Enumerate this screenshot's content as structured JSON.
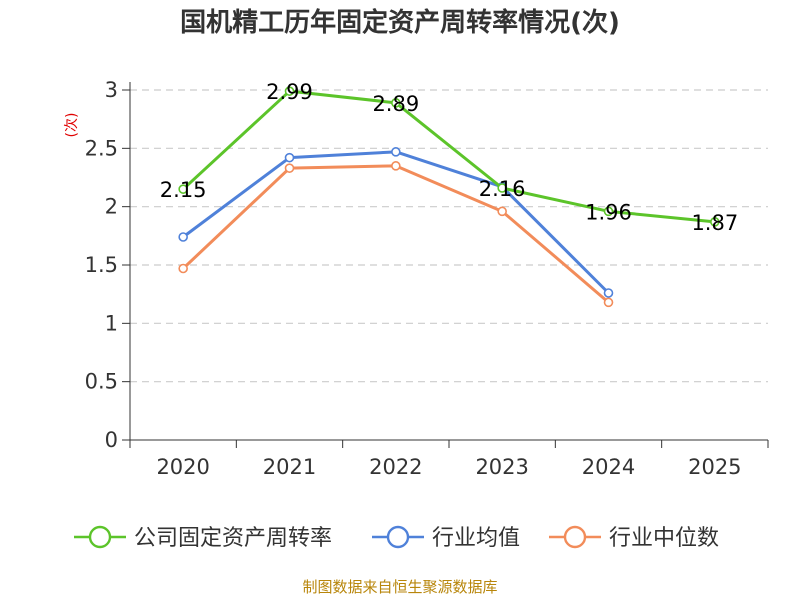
{
  "chart_data": {
    "type": "line",
    "title": "国机精工历年固定资产周转率情况(次)",
    "ylabel": "(次)",
    "xlabel": "",
    "categories": [
      "2020",
      "2021",
      "2022",
      "2023",
      "2024",
      "2025"
    ],
    "ylim": [
      0,
      3
    ],
    "yticks": [
      "0",
      "0.5",
      "1",
      "1.5",
      "2",
      "2.5",
      "3"
    ],
    "ytick_values": [
      0,
      0.5,
      1,
      1.5,
      2,
      2.5,
      3
    ],
    "grid": "horizontal-dashed",
    "legend_position": "bottom",
    "series": [
      {
        "name": "公司固定资产周转率",
        "color": "#5cc42a",
        "values": [
          2.15,
          2.99,
          2.89,
          2.16,
          1.96,
          1.87
        ],
        "labels": [
          "2.15",
          "2.99",
          "2.89",
          "2.16",
          "1.96",
          "1.87"
        ]
      },
      {
        "name": "行业均值",
        "color": "#4f81d9",
        "values": [
          1.74,
          2.42,
          2.47,
          2.17,
          1.26,
          null
        ]
      },
      {
        "name": "行业中位数",
        "color": "#f28c5a",
        "values": [
          1.47,
          2.33,
          2.35,
          1.96,
          1.18,
          null
        ]
      }
    ]
  },
  "source": "制图数据来自恒生聚源数据库"
}
